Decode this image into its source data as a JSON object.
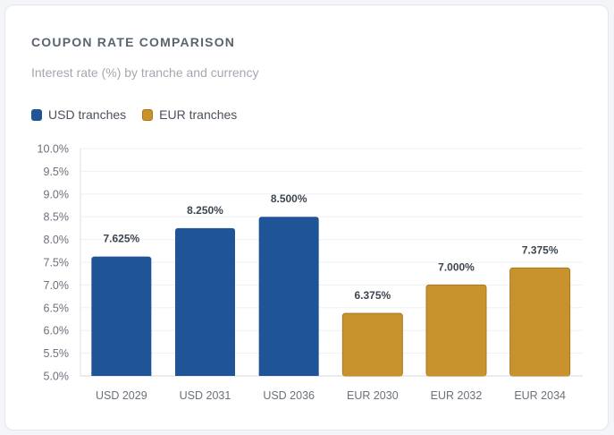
{
  "chart_data": {
    "type": "bar",
    "title": "COUPON RATE COMPARISON",
    "subtitle": "Interest rate (%) by tranche and currency",
    "xlabel": "",
    "ylabel": "",
    "ylim": [
      5.0,
      10.0
    ],
    "yticks": [
      5.0,
      5.5,
      6.0,
      6.5,
      7.0,
      7.5,
      8.0,
      8.5,
      9.0,
      9.5,
      10.0
    ],
    "ytick_labels": [
      "5.0%",
      "5.5%",
      "6.0%",
      "6.5%",
      "7.0%",
      "7.5%",
      "8.0%",
      "8.5%",
      "9.0%",
      "9.5%",
      "10.0%"
    ],
    "grid": true,
    "legend": [
      {
        "name": "USD tranches",
        "color": "#1f5596"
      },
      {
        "name": "EUR tranches",
        "color": "#c8922c",
        "border": "#a87820"
      }
    ],
    "legend_position": "top-left",
    "categories": [
      "USD 2029",
      "USD 2031",
      "USD 2036",
      "EUR 2030",
      "EUR 2032",
      "EUR 2034"
    ],
    "values": [
      7.625,
      8.25,
      8.5,
      6.375,
      7.0,
      7.375
    ],
    "value_labels": [
      "7.625%",
      "8.250%",
      "8.500%",
      "6.375%",
      "7.000%",
      "7.375%"
    ],
    "series_index": [
      0,
      0,
      0,
      1,
      1,
      1
    ]
  }
}
